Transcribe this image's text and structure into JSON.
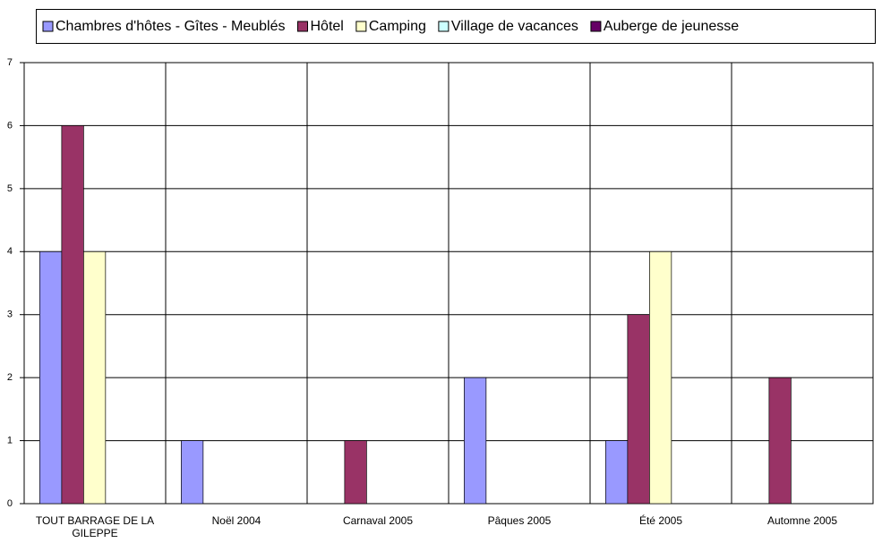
{
  "chart_data": {
    "type": "bar",
    "categories": [
      "TOUT BARRAGE DE LA GILEPPE",
      "Noël 2004",
      "Carnaval 2005",
      "Pâques 2005",
      "Été 2005",
      "Automne 2005"
    ],
    "series": [
      {
        "name": "Chambres d'hôtes - Gîtes - Meublés",
        "color": "#9999ff",
        "values": [
          4,
          1,
          0,
          2,
          1,
          0
        ]
      },
      {
        "name": "Hôtel",
        "color": "#993366",
        "values": [
          6,
          0,
          1,
          0,
          3,
          2
        ]
      },
      {
        "name": "Camping",
        "color": "#ffffcc",
        "values": [
          4,
          0,
          0,
          0,
          4,
          0
        ]
      },
      {
        "name": "Village de vacances",
        "color": "#ccffff",
        "values": [
          0,
          0,
          0,
          0,
          0,
          0
        ]
      },
      {
        "name": "Auberge de jeunesse",
        "color": "#660066",
        "values": [
          0,
          0,
          0,
          0,
          0,
          0
        ]
      }
    ],
    "ylim": [
      0,
      7
    ],
    "yticks": [
      0,
      1,
      2,
      3,
      4,
      5,
      6,
      7
    ],
    "grid": true,
    "legend": "top"
  }
}
